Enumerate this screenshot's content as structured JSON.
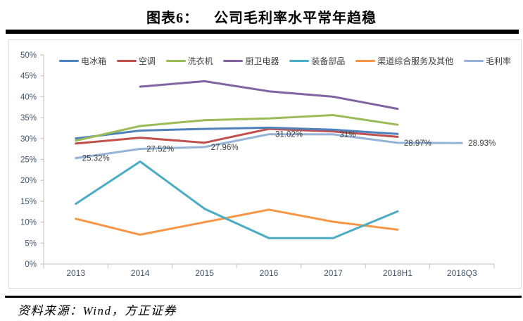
{
  "header": {
    "figure_label": "图表6：",
    "title": "公司毛利率水平常年趋稳"
  },
  "footer": {
    "source": "资料来源：Wind，方正证券"
  },
  "chart_data": {
    "type": "line",
    "title": "公司毛利率水平常年趋稳",
    "categories": [
      "2013",
      "2014",
      "2015",
      "2016",
      "2017",
      "2018H1",
      "2018Q3"
    ],
    "y_axis": {
      "min": 0,
      "max": 50,
      "step": 5,
      "format": "percent",
      "tick_labels": [
        "0%",
        "5%",
        "10%",
        "15%",
        "20%",
        "25%",
        "30%",
        "35%",
        "40%",
        "45%",
        "50%"
      ]
    },
    "grid": false,
    "legend_position": "top",
    "axis_color": "#BFBFBF",
    "axis_label_color": "#44546A",
    "data_label_color": "#3F3F3F",
    "series": [
      {
        "name": "电冰箱",
        "color": "#4F81BD",
        "values": [
          30.0,
          31.9,
          32.3,
          32.6,
          32.1,
          31.1,
          null
        ]
      },
      {
        "name": "空调",
        "color": "#C0504D",
        "values": [
          28.8,
          30.2,
          29.0,
          32.3,
          31.7,
          30.4,
          null
        ]
      },
      {
        "name": "洗衣机",
        "color": "#9BBB59",
        "values": [
          29.5,
          33.0,
          34.4,
          34.8,
          35.6,
          33.3,
          null
        ]
      },
      {
        "name": "厨卫电器",
        "color": "#8064A2",
        "values": [
          null,
          42.4,
          43.7,
          41.3,
          40.0,
          37.1,
          null
        ]
      },
      {
        "name": "装备部品",
        "color": "#4BACC6",
        "values": [
          14.4,
          24.5,
          13.2,
          6.2,
          6.2,
          12.6,
          null
        ]
      },
      {
        "name": "渠道综合服务及其他",
        "color": "#F79646",
        "values": [
          10.8,
          7.0,
          10.0,
          13.0,
          10.1,
          8.2,
          null
        ]
      },
      {
        "name": "毛利率",
        "color": "#95B3D7",
        "values": [
          25.32,
          27.52,
          27.96,
          31.02,
          31.0,
          28.97,
          28.93
        ],
        "point_labels": [
          "25.32%",
          "27.52%",
          "27.96%",
          "31.02%",
          "31%",
          "28.97%",
          "28.93%"
        ]
      }
    ]
  }
}
